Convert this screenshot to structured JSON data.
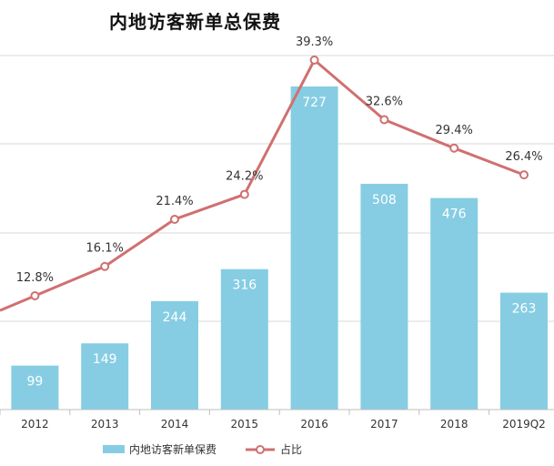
{
  "chart_data": {
    "type": "bar",
    "title": "内地访客新单总保费",
    "categories": [
      "2012",
      "2013",
      "2014",
      "2015",
      "2016",
      "2017",
      "2018",
      "2019Q2"
    ],
    "series": [
      {
        "name": "内地访客新单保费",
        "type": "bar",
        "values": [
          99,
          149,
          244,
          316,
          727,
          508,
          476,
          263
        ],
        "labels": [
          "99",
          "149",
          "244",
          "316",
          "727",
          "508",
          "476",
          "263"
        ],
        "color": "#86cde3"
      },
      {
        "name": "占比",
        "type": "line",
        "values": [
          12.8,
          16.1,
          21.4,
          24.2,
          39.3,
          32.6,
          29.4,
          26.4
        ],
        "labels": [
          "12.8%",
          "16.1%",
          "21.4%",
          "24.2%",
          "39.3%",
          "32.6%",
          "29.4%",
          "26.4%"
        ],
        "color": "#d07070"
      }
    ],
    "legend_position": "bottom",
    "grid": true
  }
}
